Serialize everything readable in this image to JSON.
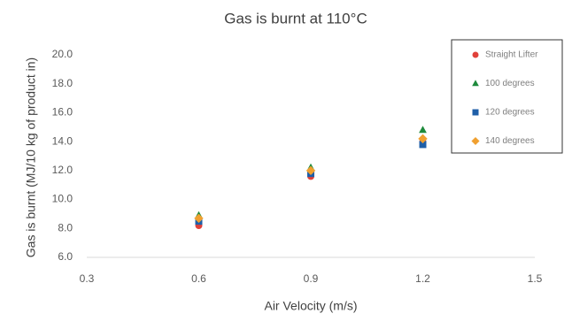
{
  "chart_data": {
    "type": "scatter",
    "title": "Gas is burnt at 110°C",
    "x_label": "Air Velocity (m/s)",
    "y_label": "Gas is burnt (MJ/10 kg of product in)",
    "x": [
      0.6,
      0.9,
      1.2
    ],
    "series": [
      {
        "name": "Straight Lifter",
        "color": "#e0413a",
        "marker": "circle",
        "values": [
          8.2,
          11.6,
          14.0
        ]
      },
      {
        "name": "100 degrees",
        "color": "#1e8a3c",
        "marker": "triangle",
        "values": [
          8.9,
          12.2,
          14.8
        ]
      },
      {
        "name": "120 degrees",
        "color": "#1f5fa8",
        "marker": "square",
        "values": [
          8.5,
          11.8,
          13.8
        ]
      },
      {
        "name": "140 degrees",
        "color": "#f0a030",
        "marker": "diamond",
        "values": [
          8.7,
          12.0,
          14.2
        ]
      }
    ],
    "xlim": [
      0.3,
      1.5
    ],
    "xticks": [
      0.3,
      0.6,
      0.9,
      1.2,
      1.5
    ],
    "ylim": [
      6,
      20
    ],
    "yticks": [
      {
        "value": 6,
        "label": "6.0"
      },
      {
        "value": 8,
        "label": "8.0"
      },
      {
        "value": 10,
        "label": "10.0"
      },
      {
        "value": 12,
        "label": "12.0"
      },
      {
        "value": 14,
        "label": "14.0"
      },
      {
        "value": 16,
        "label": "16.0"
      },
      {
        "value": 18,
        "label": "18.0"
      },
      {
        "value": 20,
        "label": "20.0"
      }
    ],
    "legend": "upper-right"
  }
}
